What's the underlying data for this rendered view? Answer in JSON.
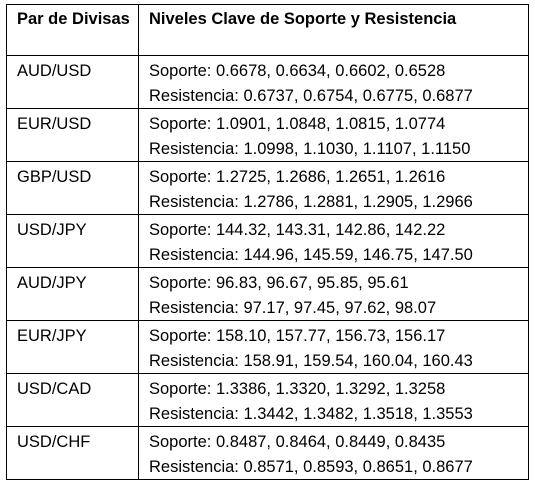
{
  "table": {
    "headers": {
      "pair": "Par de Divisas",
      "levels": "Niveles Clave de Soporte y Resistencia"
    },
    "rows": [
      {
        "pair": "AUD/USD",
        "support": "Soporte: 0.6678, 0.6634, 0.6602, 0.6528",
        "resistance": "Resistencia: 0.6737, 0.6754, 0.6775, 0.6877"
      },
      {
        "pair": "EUR/USD",
        "support": "Soporte: 1.0901, 1.0848, 1.0815, 1.0774",
        "resistance": "Resistencia: 1.0998, 1.1030, 1.1107, 1.1150"
      },
      {
        "pair": "GBP/USD",
        "support": "Soporte: 1.2725, 1.2686, 1.2651, 1.2616",
        "resistance": "Resistencia: 1.2786, 1.2881, 1.2905, 1.2966"
      },
      {
        "pair": "USD/JPY",
        "support": "Soporte: 144.32, 143.31, 142.86, 142.22",
        "resistance": "Resistencia: 144.96, 145.59, 146.75, 147.50"
      },
      {
        "pair": "AUD/JPY",
        "support": "Soporte: 96.83, 96.67, 95.85, 95.61",
        "resistance": "Resistencia: 97.17, 97.45, 97.62, 98.07"
      },
      {
        "pair": "EUR/JPY",
        "support": "Soporte: 158.10, 157.77, 156.73, 156.17",
        "resistance": "Resistencia: 158.91, 159.54, 160.04, 160.43"
      },
      {
        "pair": "USD/CAD",
        "support": "Soporte: 1.3386, 1.3320, 1.3292, 1.3258",
        "resistance": "Resistencia: 1.3442, 1.3482, 1.3518, 1.3553"
      },
      {
        "pair": "USD/CHF",
        "support": "Soporte: 0.8487, 0.8464, 0.8449, 0.8435",
        "resistance": "Resistencia: 0.8571, 0.8593, 0.8651, 0.8677"
      }
    ]
  }
}
